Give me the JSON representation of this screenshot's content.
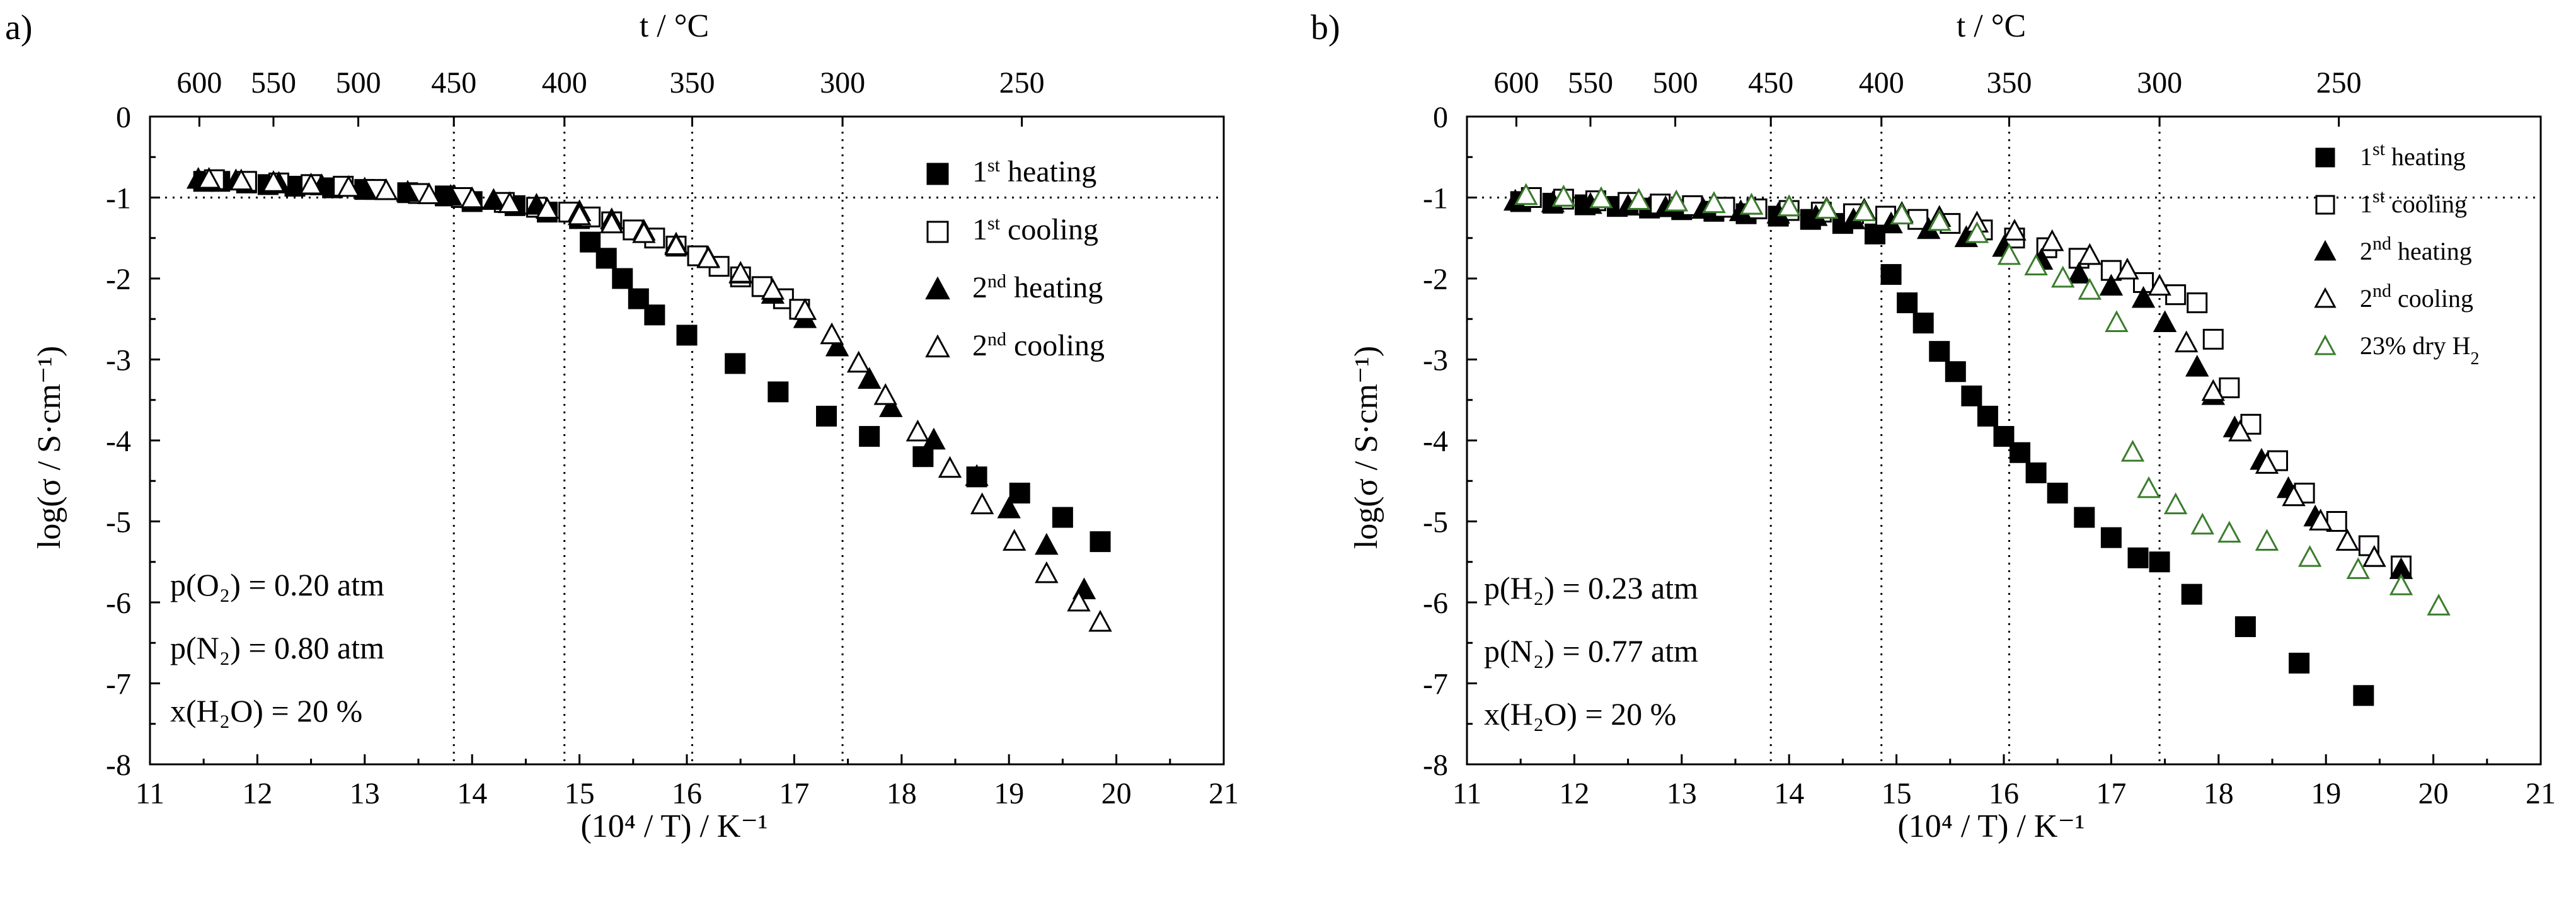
{
  "figure": {
    "panels": [
      {
        "id": "a",
        "label": "a)",
        "top_axis_title": "t / °C",
        "top_ticks": [
          "600",
          "550",
          "500",
          "450",
          "400",
          "350",
          "300",
          "250"
        ],
        "top_tick_x": [
          11.46,
          12.15,
          12.94,
          13.83,
          14.86,
          16.05,
          17.45,
          19.12
        ],
        "x_title": "(10⁴ / T) / K⁻¹",
        "y_title": "log(σ / S·cm⁻¹)",
        "x_ticks": [
          "11",
          "12",
          "13",
          "14",
          "15",
          "16",
          "17",
          "18",
          "19",
          "20",
          "21"
        ],
        "y_ticks": [
          "0",
          "-1",
          "-2",
          "-3",
          "-4",
          "-5",
          "-6",
          "-7",
          "-8"
        ],
        "conditions": [
          {
            "label": "p(O₂) = 0.20 atm"
          },
          {
            "label": "p(N₂) = 0.80 atm"
          },
          {
            "label": "x(H₂O) = 20 %"
          }
        ],
        "legend": [
          {
            "marker": "filled-square",
            "ord": "1",
            "sup": "st",
            "text": " heating",
            "color": "#000000"
          },
          {
            "marker": "open-square",
            "ord": "1",
            "sup": "st",
            "text": " cooling",
            "color": "#000000"
          },
          {
            "marker": "filled-triangle",
            "ord": "2",
            "sup": "nd",
            "text": "  heating",
            "color": "#000000"
          },
          {
            "marker": "open-triangle",
            "ord": "2",
            "sup": "nd",
            "text": "  cooling",
            "color": "#000000"
          }
        ]
      },
      {
        "id": "b",
        "label": "b)",
        "top_axis_title": "t / °C",
        "top_ticks": [
          "600",
          "550",
          "500",
          "450",
          "400",
          "350",
          "300",
          "250"
        ],
        "top_tick_x": [
          11.46,
          12.15,
          12.94,
          13.83,
          14.86,
          16.05,
          17.45,
          19.12
        ],
        "x_title": "(10⁴ / T) / K⁻¹",
        "y_title": "log(σ / S·cm⁻¹)",
        "x_ticks": [
          "11",
          "12",
          "13",
          "14",
          "15",
          "16",
          "17",
          "18",
          "19",
          "20",
          "21"
        ],
        "y_ticks": [
          "0",
          "-1",
          "-2",
          "-3",
          "-4",
          "-5",
          "-6",
          "-7",
          "-8"
        ],
        "conditions": [
          {
            "label": "p(H₂) = 0.23 atm"
          },
          {
            "label": "p(N₂) = 0.77 atm"
          },
          {
            "label": "x(H₂O) = 20 %"
          }
        ],
        "legend": [
          {
            "marker": "filled-square",
            "ord": "1",
            "sup": "st",
            "text": " heating",
            "color": "#000000"
          },
          {
            "marker": "open-square",
            "ord": "1",
            "sup": "st",
            "text": " cooling",
            "color": "#000000"
          },
          {
            "marker": "filled-triangle",
            "ord": "2",
            "sup": "nd",
            "text": "  heating",
            "color": "#000000"
          },
          {
            "marker": "open-triangle",
            "ord": "2",
            "sup": "nd",
            "text": "  cooling",
            "color": "#000000"
          },
          {
            "marker": "open-triangle",
            "ord": "23% dry H",
            "sup": "",
            "sub": "2",
            "text": "",
            "color": "#3a7d2c"
          }
        ]
      }
    ]
  },
  "chart_data": [
    {
      "type": "scatter",
      "title": "a)",
      "xlabel": "(10⁴ / T) / K⁻¹",
      "ylabel": "log(σ / S·cm⁻¹)",
      "top_xlabel": "t / °C",
      "xlim": [
        11,
        21
      ],
      "ylim": [
        -8,
        0
      ],
      "reference_lines": {
        "x": [
          13.83,
          14.86,
          16.05,
          17.45
        ],
        "y": [
          -1
        ]
      },
      "series": [
        {
          "name": "1st heating",
          "marker": "filled-square",
          "color": "#000000",
          "x": [
            11.5,
            11.65,
            11.9,
            12.1,
            12.35,
            12.7,
            13.0,
            13.4,
            13.75,
            14.0,
            14.4,
            14.7,
            15.0,
            15.1,
            15.25,
            15.4,
            15.55,
            15.7,
            16.0,
            16.45,
            16.85,
            17.3,
            17.7,
            18.2,
            18.7,
            19.1,
            19.5,
            19.85
          ],
          "y": [
            -0.8,
            -0.8,
            -0.82,
            -0.84,
            -0.86,
            -0.88,
            -0.9,
            -0.94,
            -0.98,
            -1.05,
            -1.1,
            -1.18,
            -1.26,
            -1.55,
            -1.75,
            -2.0,
            -2.25,
            -2.45,
            -2.7,
            -3.05,
            -3.4,
            -3.7,
            -3.95,
            -4.2,
            -4.45,
            -4.65,
            -4.95,
            -5.25
          ]
        },
        {
          "name": "1st cooling",
          "marker": "open-square",
          "color": "#000000",
          "x": [
            11.6,
            11.9,
            12.2,
            12.5,
            12.8,
            13.1,
            13.5,
            13.9,
            14.3,
            14.6,
            14.9,
            15.1,
            15.3,
            15.5,
            15.7,
            15.9,
            16.1,
            16.3,
            16.5,
            16.7,
            16.9,
            17.05
          ],
          "y": [
            -0.78,
            -0.8,
            -0.82,
            -0.84,
            -0.86,
            -0.9,
            -0.95,
            -1.0,
            -1.06,
            -1.12,
            -1.18,
            -1.24,
            -1.3,
            -1.4,
            -1.5,
            -1.6,
            -1.72,
            -1.85,
            -1.98,
            -2.1,
            -2.25,
            -2.38
          ]
        },
        {
          "name": "2nd heating",
          "marker": "filled-triangle",
          "color": "#000000",
          "x": [
            11.45,
            11.8,
            12.2,
            12.6,
            13.0,
            13.4,
            13.8,
            14.2,
            14.6,
            15.0,
            15.3,
            15.6,
            15.9,
            16.2,
            16.5,
            16.8,
            17.1,
            17.4,
            17.7,
            17.9,
            18.3,
            18.7,
            19.0,
            19.35,
            19.7
          ],
          "y": [
            -0.78,
            -0.8,
            -0.83,
            -0.86,
            -0.9,
            -0.94,
            -0.99,
            -1.04,
            -1.1,
            -1.18,
            -1.28,
            -1.42,
            -1.58,
            -1.75,
            -1.95,
            -2.2,
            -2.5,
            -2.85,
            -3.25,
            -3.6,
            -4.0,
            -4.45,
            -4.85,
            -5.3,
            -5.85
          ]
        },
        {
          "name": "2nd cooling",
          "marker": "open-triangle",
          "color": "#000000",
          "x": [
            11.55,
            11.85,
            12.15,
            12.5,
            12.85,
            13.2,
            13.6,
            14.0,
            14.35,
            14.7,
            15.0,
            15.3,
            15.6,
            15.9,
            16.2,
            16.5,
            16.8,
            17.1,
            17.35,
            17.6,
            17.85,
            18.15,
            18.45,
            18.75,
            19.05,
            19.35,
            19.65,
            19.85
          ],
          "y": [
            -0.78,
            -0.8,
            -0.82,
            -0.85,
            -0.88,
            -0.92,
            -0.97,
            -1.02,
            -1.08,
            -1.15,
            -1.23,
            -1.33,
            -1.45,
            -1.6,
            -1.76,
            -1.94,
            -2.15,
            -2.4,
            -2.7,
            -3.05,
            -3.45,
            -3.9,
            -4.35,
            -4.8,
            -5.25,
            -5.65,
            -6.0,
            -6.25
          ]
        }
      ]
    },
    {
      "type": "scatter",
      "title": "b)",
      "xlabel": "(10⁴ / T) / K⁻¹",
      "ylabel": "log(σ / S·cm⁻¹)",
      "top_xlabel": "t / °C",
      "xlim": [
        11,
        21
      ],
      "ylim": [
        -8,
        0
      ],
      "reference_lines": {
        "x": [
          13.83,
          14.86,
          16.05,
          17.45
        ],
        "y": [
          -1
        ]
      },
      "series": [
        {
          "name": "1st heating",
          "marker": "filled-square",
          "color": "#000000",
          "x": [
            11.5,
            11.8,
            12.1,
            12.4,
            12.7,
            13.0,
            13.3,
            13.6,
            13.9,
            14.2,
            14.5,
            14.8,
            14.95,
            15.1,
            15.25,
            15.4,
            15.55,
            15.7,
            15.85,
            16.0,
            16.15,
            16.3,
            16.5,
            16.75,
            17.0,
            17.25,
            17.45,
            17.75,
            18.25,
            18.75,
            19.35
          ],
          "y": [
            -1.05,
            -1.07,
            -1.09,
            -1.11,
            -1.13,
            -1.15,
            -1.17,
            -1.2,
            -1.23,
            -1.27,
            -1.32,
            -1.45,
            -1.95,
            -2.3,
            -2.55,
            -2.9,
            -3.15,
            -3.45,
            -3.7,
            -3.95,
            -4.15,
            -4.4,
            -4.65,
            -4.95,
            -5.2,
            -5.45,
            -5.5,
            -5.9,
            -6.3,
            -6.75,
            -7.15
          ]
        },
        {
          "name": "1st cooling",
          "marker": "open-square",
          "color": "#000000",
          "x": [
            11.6,
            11.9,
            12.2,
            12.5,
            12.8,
            13.1,
            13.4,
            13.7,
            14.0,
            14.3,
            14.6,
            14.9,
            15.2,
            15.5,
            15.8,
            16.1,
            16.4,
            16.7,
            17.0,
            17.3,
            17.6,
            17.8,
            17.95,
            18.1,
            18.3,
            18.55,
            18.8,
            19.1,
            19.4,
            19.7
          ],
          "y": [
            -1.0,
            -1.02,
            -1.04,
            -1.06,
            -1.08,
            -1.1,
            -1.12,
            -1.14,
            -1.16,
            -1.18,
            -1.2,
            -1.23,
            -1.27,
            -1.32,
            -1.4,
            -1.5,
            -1.62,
            -1.75,
            -1.9,
            -2.05,
            -2.2,
            -2.3,
            -2.75,
            -3.35,
            -3.8,
            -4.25,
            -4.65,
            -5.0,
            -5.3,
            -5.55
          ]
        },
        {
          "name": "2nd heating",
          "marker": "filled-triangle",
          "color": "#000000",
          "x": [
            11.45,
            11.8,
            12.15,
            12.5,
            12.85,
            13.2,
            13.55,
            13.9,
            14.25,
            14.6,
            14.95,
            15.3,
            15.65,
            16.0,
            16.35,
            16.7,
            17.0,
            17.3,
            17.5,
            17.8,
            17.95,
            18.15,
            18.4,
            18.65,
            18.9,
            19.2,
            19.45,
            19.7
          ],
          "y": [
            -1.05,
            -1.07,
            -1.09,
            -1.11,
            -1.13,
            -1.15,
            -1.18,
            -1.21,
            -1.24,
            -1.28,
            -1.33,
            -1.4,
            -1.5,
            -1.62,
            -1.78,
            -1.95,
            -2.1,
            -2.25,
            -2.55,
            -3.1,
            -3.45,
            -3.85,
            -4.25,
            -4.6,
            -4.95,
            -5.25,
            -5.45,
            -5.6
          ]
        },
        {
          "name": "2nd cooling",
          "marker": "open-triangle",
          "color": "#000000",
          "x": [
            11.55,
            11.9,
            12.25,
            12.6,
            12.95,
            13.3,
            13.65,
            14.0,
            14.35,
            14.7,
            15.05,
            15.4,
            15.75,
            16.1,
            16.45,
            16.8,
            17.15,
            17.45,
            17.7,
            17.95,
            18.2,
            18.45,
            18.7,
            18.95,
            19.2,
            19.45
          ],
          "y": [
            -0.98,
            -1.0,
            -1.02,
            -1.04,
            -1.06,
            -1.08,
            -1.1,
            -1.12,
            -1.14,
            -1.16,
            -1.2,
            -1.25,
            -1.32,
            -1.42,
            -1.55,
            -1.72,
            -1.9,
            -2.1,
            -2.8,
            -3.4,
            -3.9,
            -4.3,
            -4.7,
            -5.0,
            -5.25,
            -5.45
          ]
        },
        {
          "name": "23% dry H2",
          "marker": "open-triangle",
          "color": "#3a7d2c",
          "x": [
            11.55,
            11.9,
            12.25,
            12.6,
            12.95,
            13.3,
            13.65,
            14.0,
            14.35,
            14.7,
            15.05,
            15.4,
            15.75,
            16.05,
            16.3,
            16.55,
            16.8,
            17.05,
            17.2,
            17.35,
            17.6,
            17.85,
            18.1,
            18.45,
            18.85,
            19.3,
            19.7,
            20.05
          ],
          "y": [
            -0.98,
            -1.0,
            -1.02,
            -1.04,
            -1.06,
            -1.08,
            -1.1,
            -1.12,
            -1.15,
            -1.18,
            -1.22,
            -1.3,
            -1.45,
            -1.72,
            -1.85,
            -2.0,
            -2.15,
            -2.55,
            -4.15,
            -4.6,
            -4.8,
            -5.05,
            -5.15,
            -5.25,
            -5.45,
            -5.6,
            -5.8,
            -6.05
          ]
        }
      ]
    }
  ]
}
